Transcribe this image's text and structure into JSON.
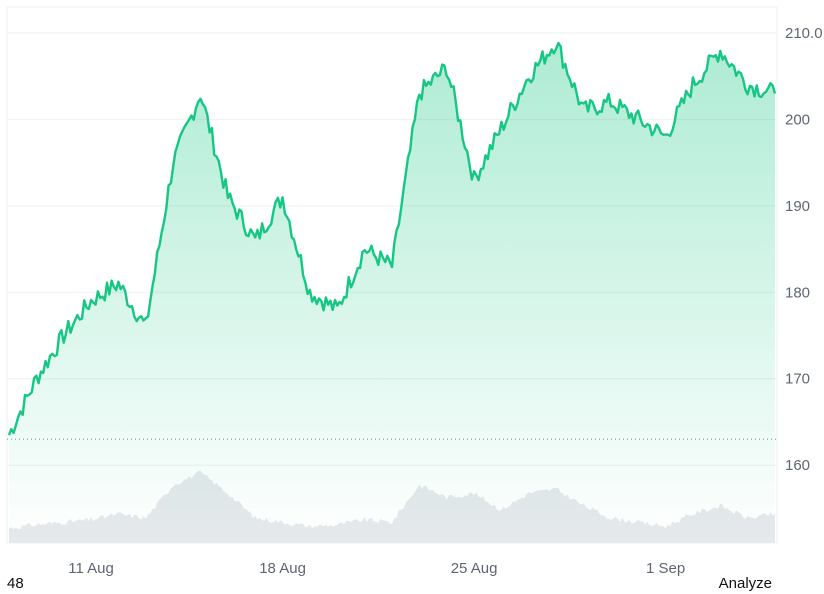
{
  "colors": {
    "line": "#16c784",
    "area_top": "#16c784",
    "grid": "#eef0f3",
    "baseline": "#9aa0a8",
    "volume": "#e6e8ec"
  },
  "chart_data": {
    "type": "area",
    "x_ticks": [
      "11 Aug",
      "18 Aug",
      "25 Aug",
      "1 Sep"
    ],
    "y_ticks": [
      "210.0",
      "200",
      "190",
      "180",
      "170",
      "160"
    ],
    "ylim": [
      151,
      213
    ],
    "baseline_value": 163,
    "grid": true,
    "price_series": {
      "x": [
        "8 Aug",
        "9 Aug",
        "10 Aug",
        "11 Aug",
        "12 Aug",
        "13 Aug",
        "14 Aug",
        "15 Aug",
        "16 Aug",
        "17 Aug",
        "18 Aug",
        "19 Aug",
        "20 Aug",
        "21 Aug",
        "22 Aug",
        "23 Aug",
        "24 Aug",
        "25 Aug",
        "26 Aug",
        "27 Aug",
        "28 Aug",
        "29 Aug",
        "30 Aug",
        "31 Aug",
        "1 Sep",
        "2 Sep",
        "3 Sep",
        "4 Sep",
        "5 Sep"
      ],
      "values": [
        163.5,
        170,
        175,
        179,
        181,
        176,
        195,
        203,
        191,
        186,
        191,
        180,
        178,
        185,
        183,
        203,
        206,
        193,
        199,
        205,
        209,
        201,
        202,
        200,
        198,
        204,
        208,
        204,
        203
      ]
    },
    "volume_series": {
      "values": [
        0.18,
        0.22,
        0.25,
        0.28,
        0.35,
        0.3,
        0.7,
        0.85,
        0.6,
        0.3,
        0.25,
        0.2,
        0.22,
        0.28,
        0.25,
        0.7,
        0.55,
        0.6,
        0.4,
        0.6,
        0.65,
        0.45,
        0.3,
        0.25,
        0.2,
        0.35,
        0.45,
        0.3,
        0.35
      ]
    }
  },
  "footer": {
    "left_text": "48",
    "right_text": "Analyze"
  }
}
